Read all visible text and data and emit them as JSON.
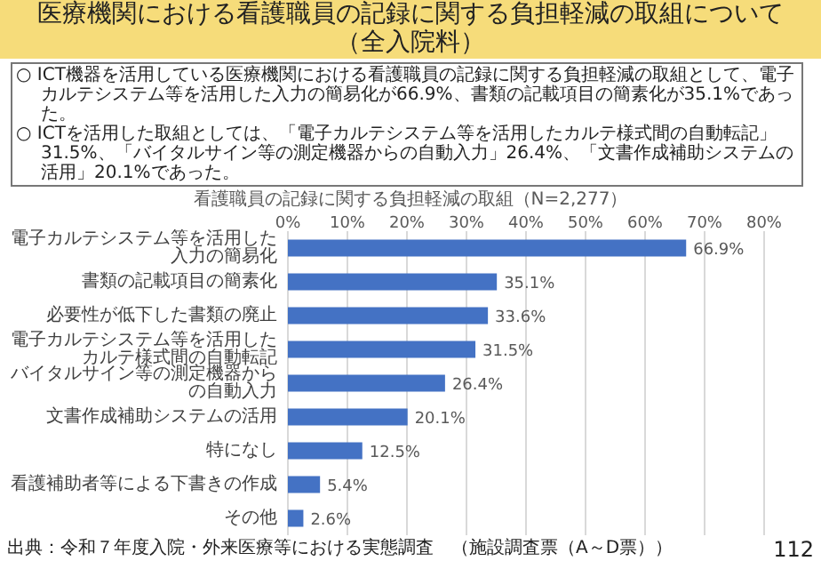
{
  "chart_data": {
    "type": "bar",
    "orientation": "horizontal",
    "title": "医療機関における看護職員の記録に関する負担軽減の取組について（全入院料）",
    "subtitle": "看護職員の記録に関する負担軽減の取組（N=2,277）",
    "categories": [
      "電子カルテシステム等を活用した入力の簡易化",
      "書類の記載項目の簡素化",
      "必要性が低下した書類の廃止",
      "電子カルテシステム等を活用したカルテ様式間の自動転記",
      "バイタルサイン等の測定機器からの自動入力",
      "文書作成補助システムの活用",
      "特になし",
      "看護補助者等による下書きの作成",
      "その他"
    ],
    "values": [
      66.9,
      35.1,
      33.6,
      31.5,
      26.4,
      20.1,
      12.5,
      5.4,
      2.6
    ],
    "value_labels": [
      "66.9%",
      "35.1%",
      "33.6%",
      "31.5%",
      "26.4%",
      "20.1%",
      "12.5%",
      "5.4%",
      "2.6%"
    ],
    "color": "#4472c4",
    "xlim": [
      0,
      80
    ],
    "xticks": [
      {
        "value": 0,
        "label": "0%"
      },
      {
        "value": 10,
        "label": "10%"
      },
      {
        "value": 20,
        "label": "20%"
      },
      {
        "value": 30,
        "label": "30%"
      },
      {
        "value": 40,
        "label": "40%"
      },
      {
        "value": 50,
        "label": "50%"
      },
      {
        "value": 60,
        "label": "60%"
      },
      {
        "value": 70,
        "label": "70%"
      },
      {
        "value": 80,
        "label": "80%"
      }
    ],
    "grid": "x",
    "annotations": [
      "○ ICT機器を活用している医療機関における看護職員の記録に関する負担軽減の取組として、電子カルテシステム等を活用した入力の簡易化が66.9%、書類の記載項目の簡素化が35.1%であった。",
      "○ ICTを活用した取組としては、「電子カルテシステム等を活用したカルテ様式間の自動転記」31.5%、「バイタルサイン等の測定機器からの自動入力」26.4%、「文書作成補助システムの活用」20.1%であった。",
      "出典：令和７年度入院・外来医療等における実態調査　（施設調査票（A～D票））",
      "112"
    ]
  }
}
